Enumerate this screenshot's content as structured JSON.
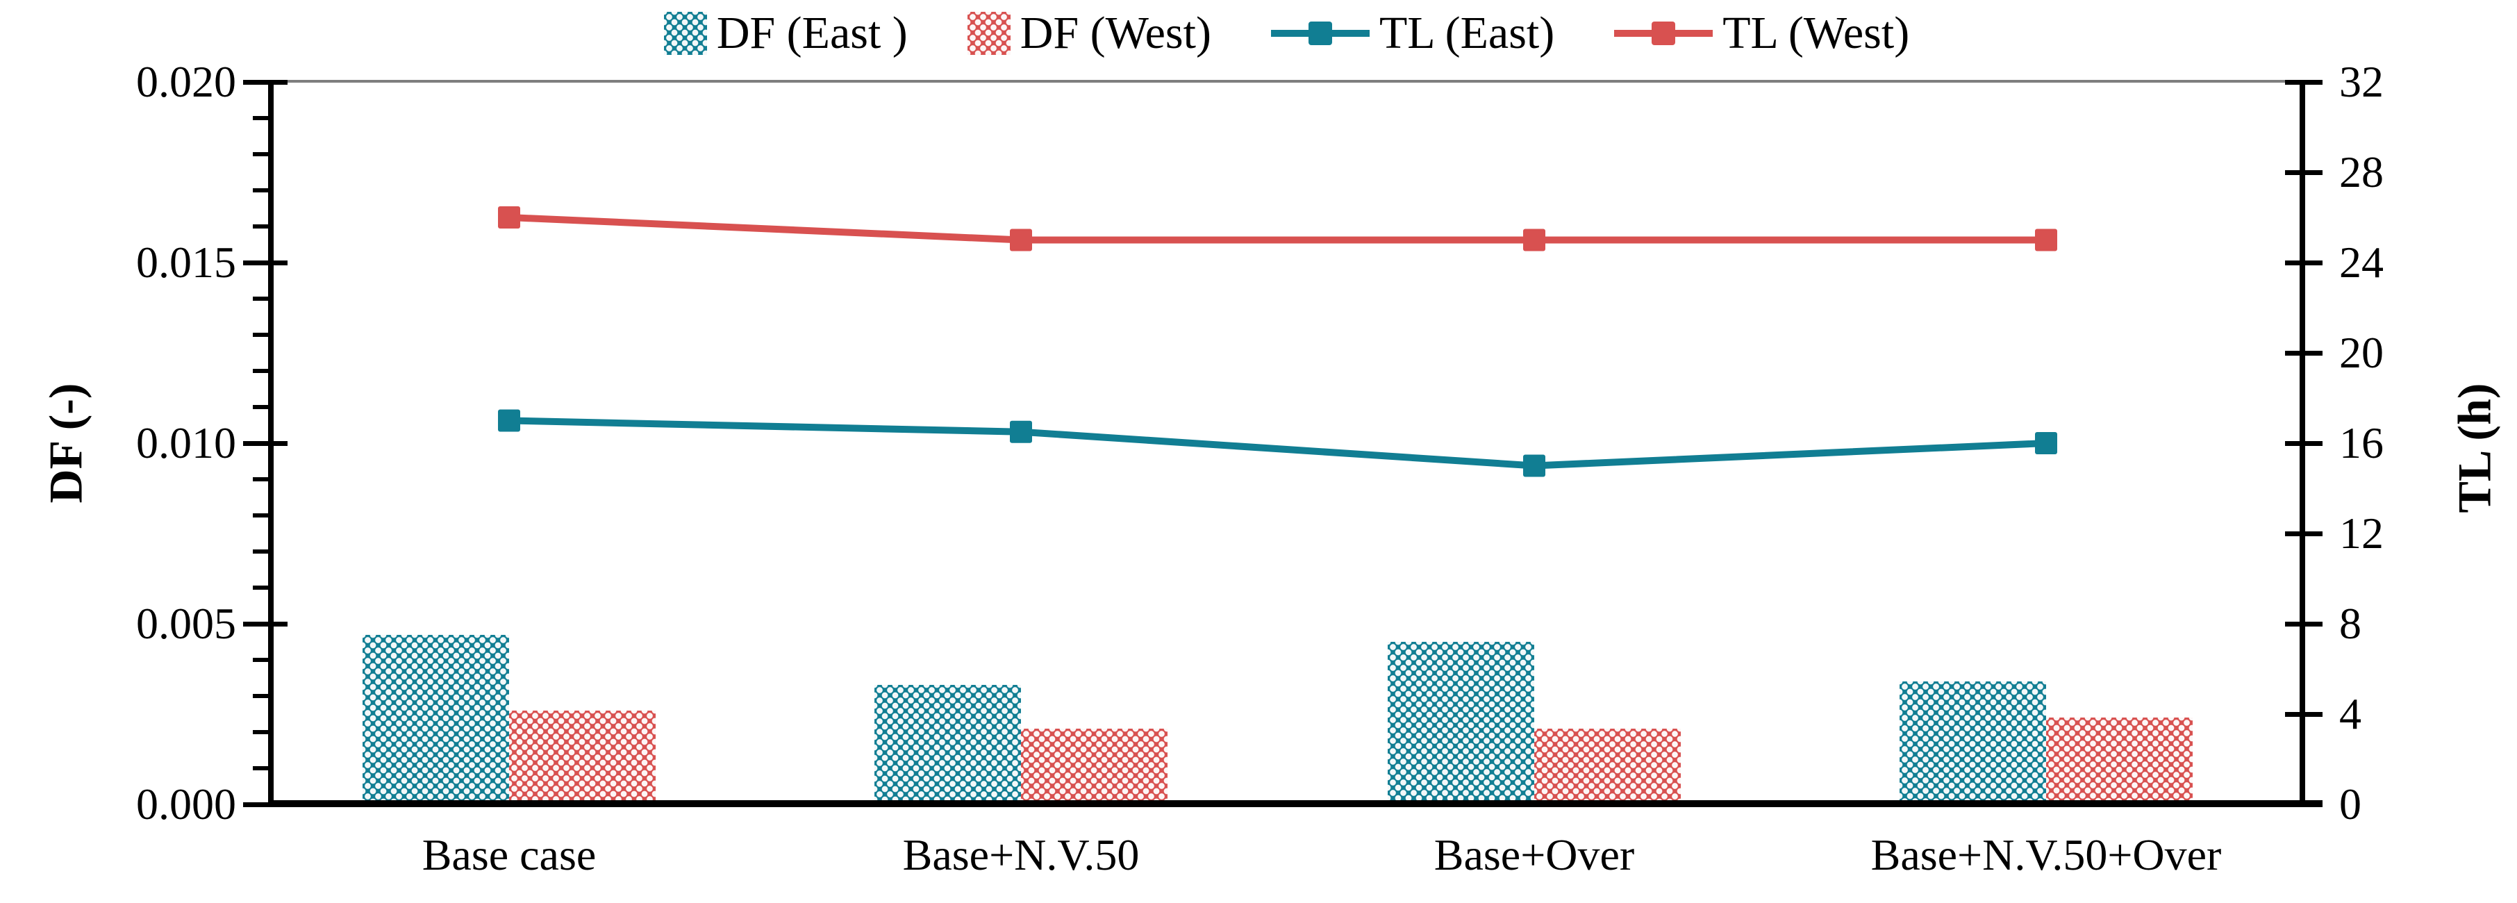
{
  "figure": {
    "colors": {
      "east": "#117e93",
      "west": "#d85150",
      "top_border": "#7f7f7f",
      "axis": "#000000",
      "pattern_dot": "#ffffff"
    },
    "legend": {
      "position": "top center",
      "items": [
        {
          "label": "DF (East )",
          "type": "bar",
          "color_key": "east"
        },
        {
          "label": "DF (West)",
          "type": "bar",
          "color_key": "west"
        },
        {
          "label": "TL (East)",
          "type": "line",
          "color_key": "east"
        },
        {
          "label": "TL (West)",
          "type": "line",
          "color_key": "west"
        }
      ]
    }
  },
  "chart_data": {
    "type": "bar",
    "subtype": "dual-axis bar + line combo",
    "categories": [
      "Base case",
      "Base+N.V.50",
      "Base+Over",
      "Base+N.V.50+Over"
    ],
    "series": [
      {
        "name": "DF (East )",
        "type": "bar",
        "axis": "left",
        "color_key": "east",
        "values": [
          0.0047,
          0.0033,
          0.0045,
          0.0034
        ]
      },
      {
        "name": "DF (West)",
        "type": "bar",
        "axis": "left",
        "color_key": "west",
        "values": [
          0.0026,
          0.0021,
          0.0021,
          0.0024
        ]
      },
      {
        "name": "TL (East)",
        "type": "line",
        "axis": "right",
        "color_key": "east",
        "values": [
          17.0,
          16.5,
          15.0,
          16.0
        ]
      },
      {
        "name": "TL (West)",
        "type": "line",
        "axis": "right",
        "color_key": "west",
        "values": [
          26.0,
          25.0,
          25.0,
          25.0
        ]
      }
    ],
    "left_axis": {
      "title": "DF (-)",
      "min": 0,
      "max": 0.02,
      "major_step": 0.005,
      "minor_step": 0.001,
      "tick_labels": [
        "0.000",
        "0.005",
        "0.010",
        "0.015",
        "0.020"
      ]
    },
    "right_axis": {
      "title": "TL (h)",
      "min": 0,
      "max": 32,
      "major_step": 4,
      "tick_labels": [
        "0",
        "4",
        "8",
        "12",
        "16",
        "20",
        "24",
        "28",
        "32"
      ]
    },
    "grid": "top plot border only, no gridlines",
    "legend_position": "top center",
    "bar_pattern": "white dotted grid on solid fill"
  }
}
